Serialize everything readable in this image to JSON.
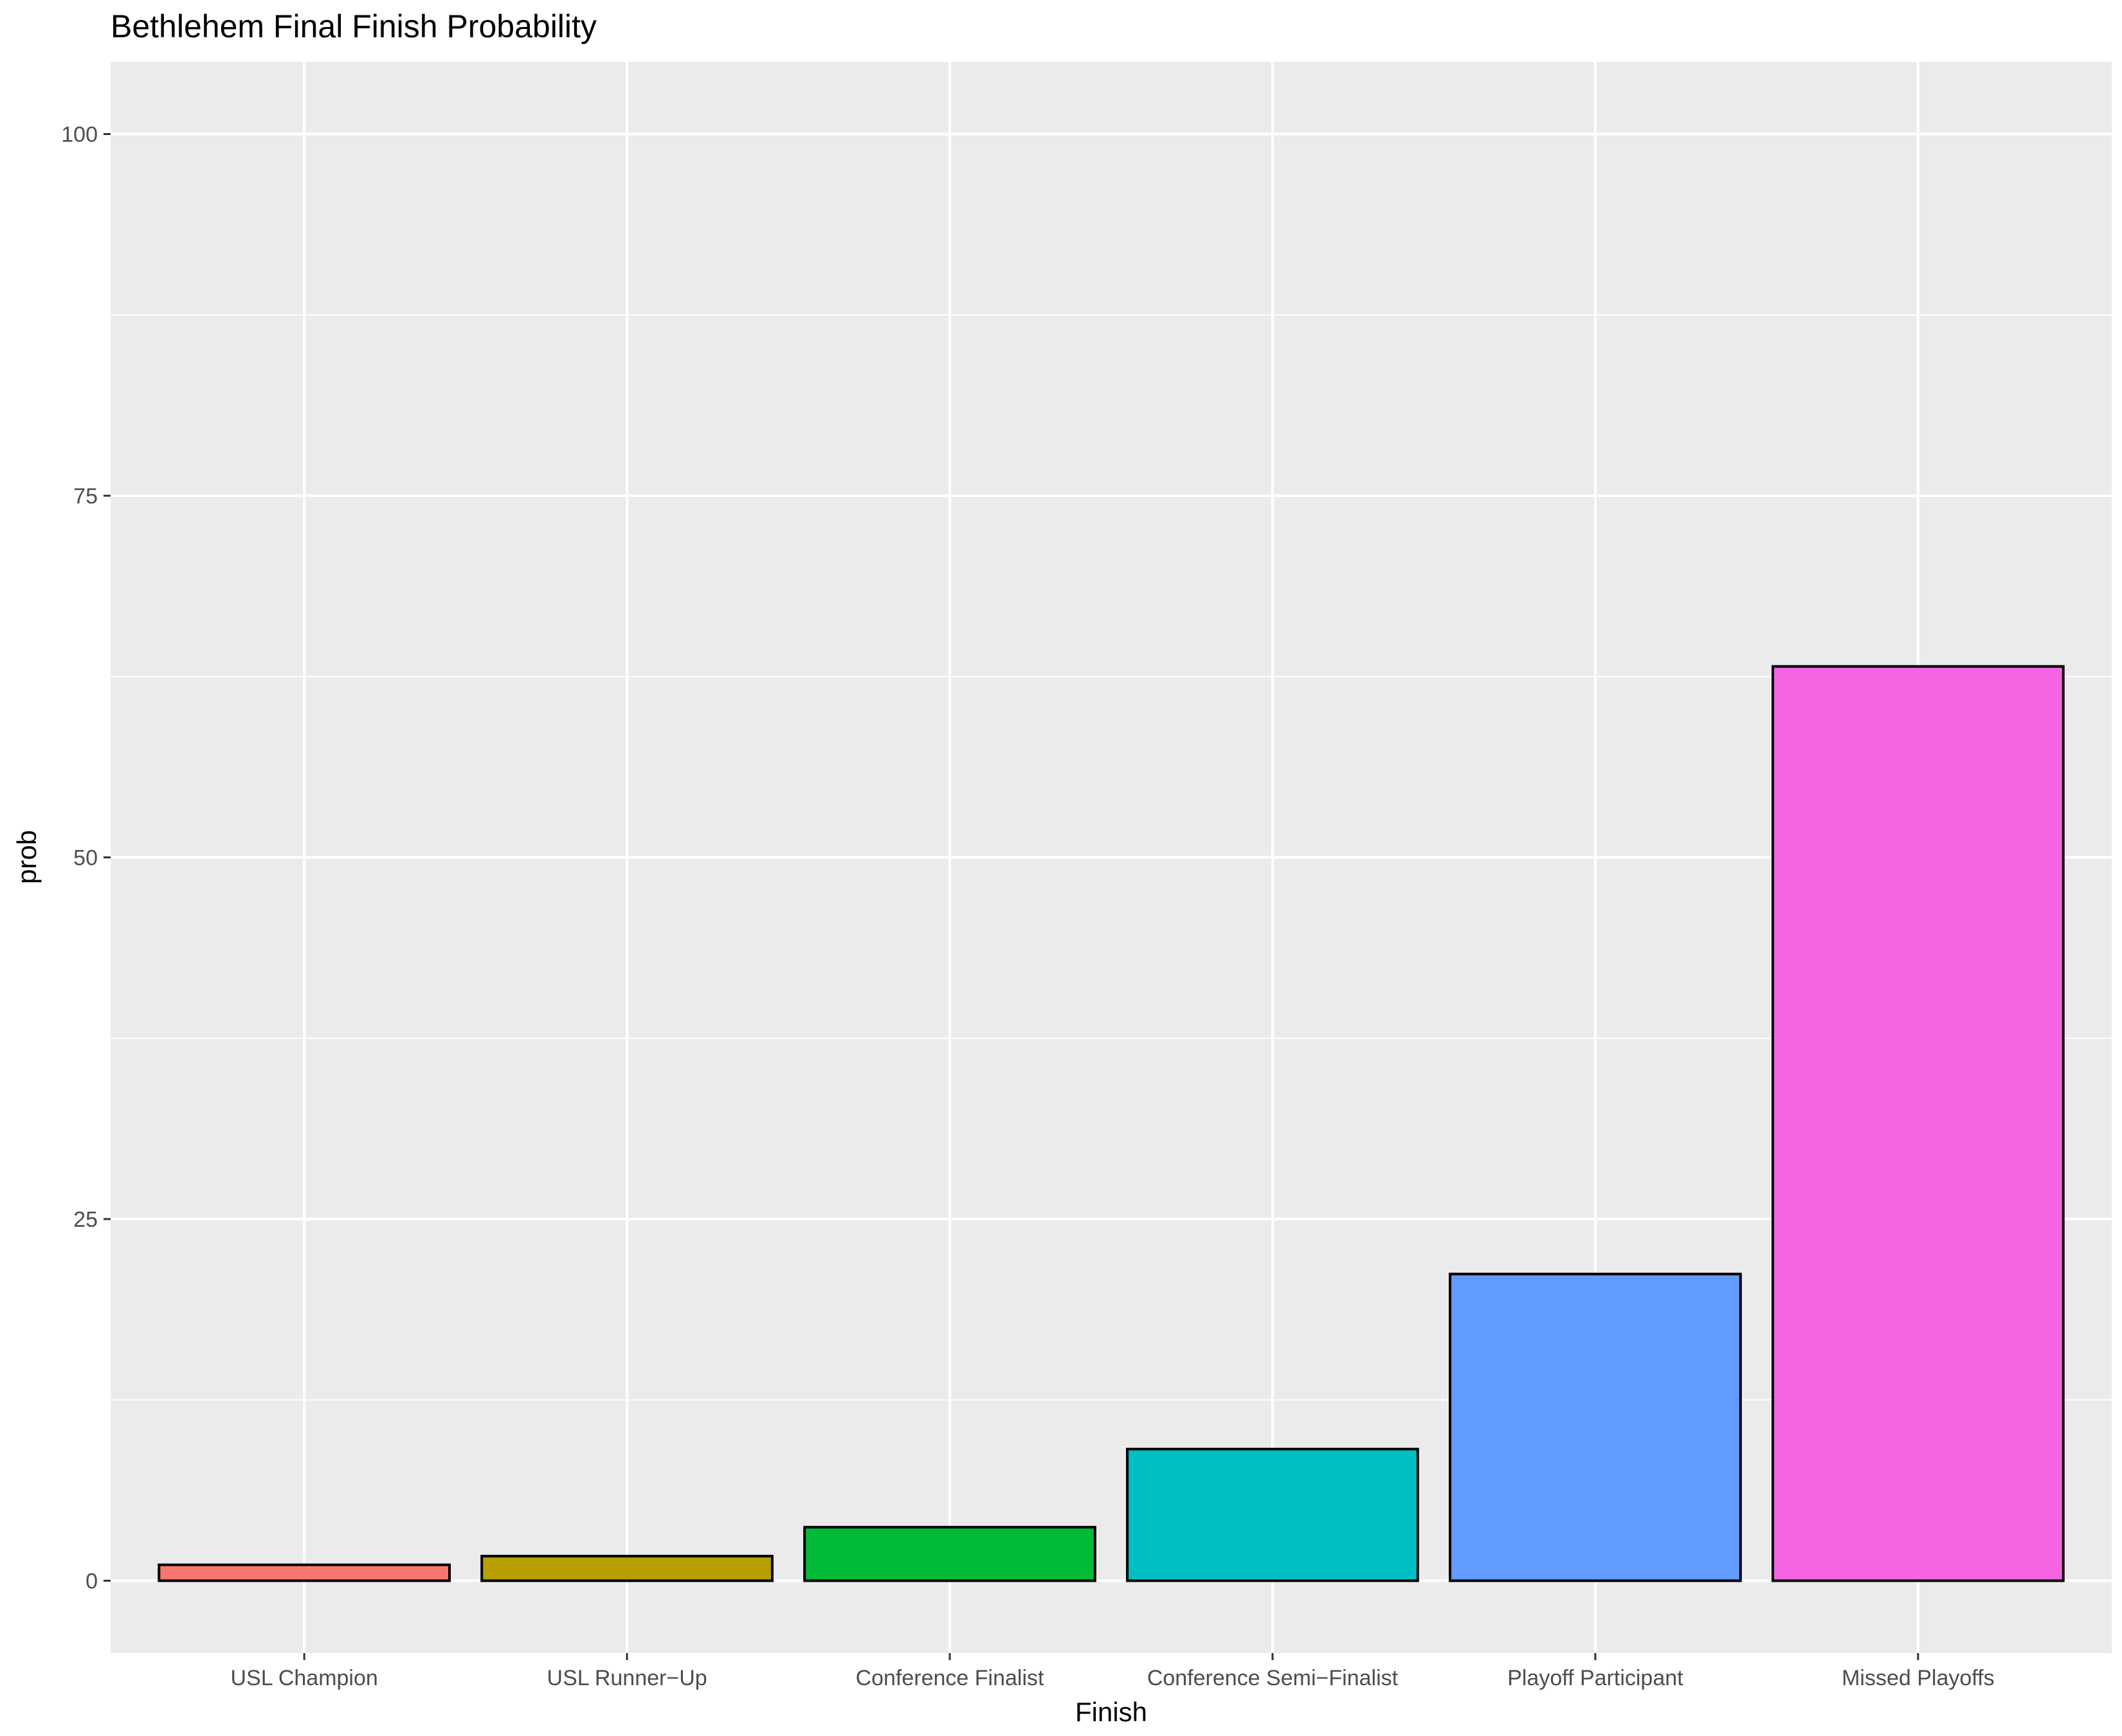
{
  "chart_data": {
    "type": "bar",
    "title": "Bethlehem Final Finish Probability",
    "xlabel": "Finish",
    "ylabel": "prob",
    "categories": [
      "USL Champion",
      "USL Runner−Up",
      "Conference Finalist",
      "Conference Semi−Finalist",
      "Playoff Participant",
      "Missed Playoffs"
    ],
    "values": [
      1.1,
      1.7,
      3.7,
      9.1,
      21.2,
      63.2
    ],
    "colors": [
      "#F8766D",
      "#B79F00",
      "#00BA38",
      "#00BFC4",
      "#619CFF",
      "#F564E3"
    ],
    "ylim": [
      -5,
      105
    ],
    "yticks": [
      0,
      25,
      50,
      75,
      100
    ],
    "ytick_labels": [
      "0",
      "25",
      "50",
      "75",
      "100"
    ],
    "panel_background": "#EBEBEB",
    "grid_color": "#FFFFFF",
    "bar_outline_color": "#000000",
    "grid": true,
    "legend": "none"
  }
}
